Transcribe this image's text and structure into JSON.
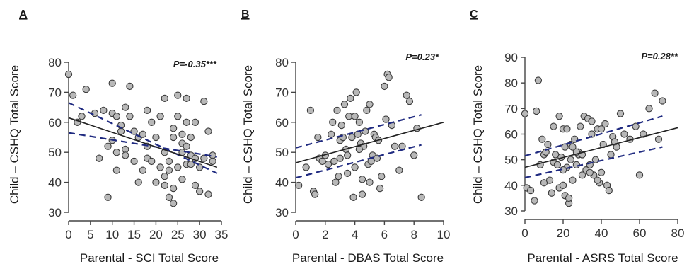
{
  "chart_data": [
    {
      "type": "scatter",
      "panel_letter": "A",
      "p_label": "P=-0.35***",
      "xlabel": "Parental  - SCI Total Score",
      "ylabel": "Child – CSHQ Total Score",
      "xlim": [
        0,
        35
      ],
      "ylim": [
        30,
        80
      ],
      "xticks": [
        "0",
        "5",
        "10",
        "15",
        "20",
        "25",
        "30",
        "35"
      ],
      "yticks": [
        "30",
        "40",
        "50",
        "60",
        "70",
        "80"
      ],
      "fit": {
        "x": [
          0,
          34
        ],
        "y": [
          61.5,
          45
        ]
      },
      "ci_upper": {
        "x": [
          0,
          34
        ],
        "y": [
          66.5,
          43
        ]
      },
      "ci_lower": {
        "x": [
          0,
          34
        ],
        "y": [
          56.5,
          48.5
        ]
      },
      "x": [
        0,
        1,
        2,
        3,
        4,
        6,
        7,
        8,
        9,
        9,
        10,
        10,
        10,
        11,
        11,
        11,
        12,
        12,
        13,
        13,
        13,
        14,
        14,
        15,
        15,
        16,
        16,
        17,
        17,
        18,
        18,
        18,
        19,
        19,
        20,
        20,
        21,
        21,
        22,
        22,
        22,
        23,
        23,
        23,
        24,
        24,
        24,
        25,
        25,
        25,
        26,
        26,
        26,
        27,
        27,
        27,
        27,
        28,
        28,
        28,
        29,
        29,
        29,
        30,
        30,
        31,
        31,
        32,
        32,
        33,
        33,
        22,
        24,
        26
      ],
      "y": [
        76,
        69,
        60,
        62,
        71,
        63,
        48,
        64,
        52,
        35,
        54,
        73,
        63,
        44,
        50,
        62,
        57,
        59,
        65,
        51,
        49,
        72,
        62,
        47,
        57,
        55,
        40,
        44,
        56,
        48,
        64,
        52,
        60,
        47,
        55,
        40,
        62,
        45,
        50,
        68,
        39,
        44,
        35,
        47,
        58,
        33,
        55,
        45,
        69,
        62,
        56,
        53,
        41,
        52,
        46,
        60,
        68,
        49,
        55,
        46,
        39,
        48,
        60,
        37,
        45,
        67,
        48,
        36,
        57,
        49,
        47,
        42,
        38,
        50
      ]
    },
    {
      "type": "scatter",
      "panel_letter": "B",
      "p_label": "P=0.23*",
      "xlabel": "Parental - DBAS Total Score",
      "ylabel": "Child – CSHQ Total Score",
      "xlim": [
        0,
        10
      ],
      "ylim": [
        30,
        80
      ],
      "xticks": [
        "0",
        "2",
        "4",
        "6",
        "8",
        "10"
      ],
      "yticks": [
        "30",
        "40",
        "50",
        "60",
        "70",
        "80"
      ],
      "fit": {
        "x": [
          0,
          10
        ],
        "y": [
          46.5,
          60
        ]
      },
      "ci_upper": {
        "x": [
          0,
          8.5
        ],
        "y": [
          51.5,
          62.5
        ]
      },
      "ci_lower": {
        "x": [
          0,
          8.5
        ],
        "y": [
          41.5,
          52.5
        ]
      },
      "x": [
        0.2,
        0.7,
        1.0,
        1.2,
        1.3,
        1.5,
        1.6,
        1.8,
        2.0,
        2.2,
        2.4,
        2.5,
        2.6,
        2.8,
        2.9,
        3.0,
        3.0,
        3.2,
        3.3,
        3.4,
        3.5,
        3.5,
        3.6,
        3.7,
        3.8,
        3.9,
        4.0,
        4.0,
        4.1,
        4.2,
        4.3,
        4.4,
        4.5,
        4.5,
        4.6,
        4.7,
        4.8,
        4.9,
        5.0,
        5.0,
        5.2,
        5.3,
        5.4,
        5.5,
        5.6,
        5.7,
        5.8,
        6.0,
        6.1,
        6.2,
        6.3,
        6.5,
        6.7,
        7.0,
        7.2,
        7.5,
        7.7,
        8.0,
        8.2,
        8.5,
        3.1,
        4.3,
        5.1,
        2.7
      ],
      "y": [
        39,
        45,
        64,
        37,
        36,
        55,
        48,
        47,
        49,
        46,
        56,
        60,
        47,
        64,
        42,
        54,
        48,
        55,
        66,
        51,
        49,
        43,
        62,
        68,
        55,
        35,
        45,
        62,
        70,
        56,
        60,
        53,
        36,
        41,
        52,
        57,
        64,
        46,
        66,
        40,
        49,
        56,
        55,
        48,
        54,
        38,
        42,
        72,
        61,
        76,
        75,
        59,
        52,
        44,
        52,
        69,
        67,
        49,
        58,
        35,
        59,
        51,
        47,
        40
      ]
    },
    {
      "type": "scatter",
      "panel_letter": "C",
      "p_label": "P=0.28**",
      "xlabel": "Parental - ASRS Total Score",
      "ylabel": "Child – CSHQ Total Score",
      "xlim": [
        0,
        80
      ],
      "ylim": [
        30,
        90
      ],
      "xticks": [
        "0",
        "20",
        "40",
        "60",
        "80"
      ],
      "yticks": [
        "30",
        "40",
        "50",
        "60",
        "70",
        "80",
        "90"
      ],
      "fit": {
        "x": [
          0,
          80
        ],
        "y": [
          47,
          62.5
        ]
      },
      "ci_upper": {
        "x": [
          0,
          72
        ],
        "y": [
          51.5,
          67
        ]
      },
      "ci_lower": {
        "x": [
          0,
          72
        ],
        "y": [
          43,
          55
        ]
      },
      "x": [
        0,
        1,
        3,
        5,
        6,
        7,
        8,
        9,
        10,
        10,
        11,
        12,
        13,
        14,
        15,
        15,
        16,
        17,
        18,
        18,
        19,
        20,
        20,
        21,
        21,
        22,
        22,
        23,
        23,
        24,
        25,
        25,
        26,
        27,
        28,
        28,
        29,
        30,
        30,
        31,
        32,
        33,
        34,
        35,
        35,
        36,
        37,
        38,
        39,
        40,
        40,
        41,
        42,
        43,
        44,
        45,
        46,
        48,
        50,
        52,
        55,
        58,
        60,
        62,
        65,
        68,
        70,
        72,
        24,
        34,
        47,
        20,
        38,
        27
      ],
      "y": [
        68,
        39,
        38,
        34,
        69,
        81,
        48,
        58,
        41,
        52,
        53,
        56,
        42,
        37,
        49,
        63,
        52,
        48,
        67,
        39,
        51,
        40,
        62,
        36,
        55,
        47,
        62,
        33,
        35,
        56,
        42,
        55,
        58,
        48,
        53,
        52,
        63,
        44,
        52,
        67,
        46,
        66,
        48,
        60,
        65,
        44,
        50,
        62,
        41,
        62,
        45,
        56,
        64,
        40,
        38,
        52,
        59,
        55,
        68,
        60,
        58,
        63,
        44,
        60,
        70,
        76,
        58,
        73,
        50,
        45,
        57,
        46,
        42,
        53
      ]
    }
  ]
}
